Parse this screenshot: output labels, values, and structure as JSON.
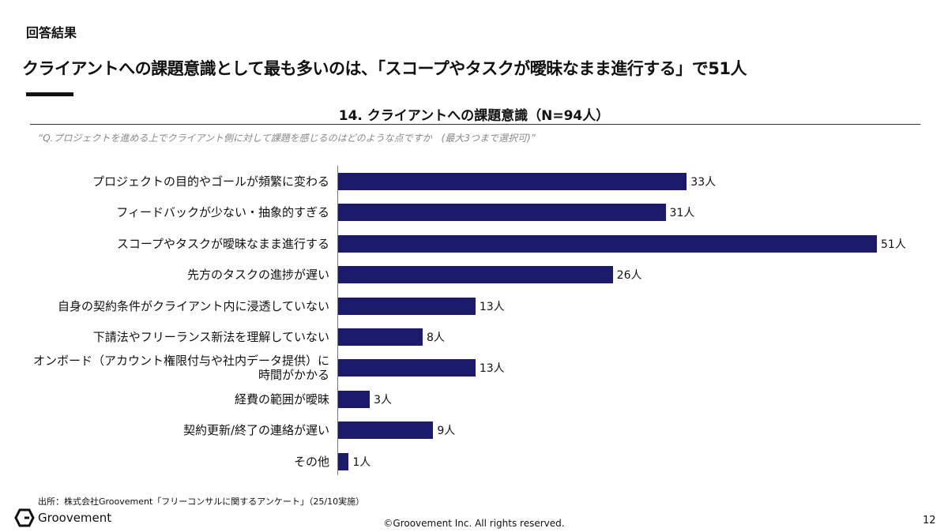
{
  "header": {
    "section": "回答結果",
    "headline": "クライアントへの課題意識として最も多いのは、「スコープやタスクが曖昧なまま進行する」で51人"
  },
  "chart_data": {
    "type": "bar",
    "orientation": "horizontal",
    "title": "14. クライアントへの課題意識（N=94人）",
    "subtitle": "“Q.プロジェクトを進める上でクライアント側に対して課題を感じるのはどのような点ですか　(最大3つまで選択可)”",
    "categories": [
      "プロジェクトの目的やゴールが頻繁に変わる",
      "フィードバックが少ない・抽象的すぎる",
      "スコープやタスクが曖昧なまま進行する",
      "先方のタスクの進捗が遅い",
      "自身の契約条件がクライアント内に浸透していない",
      "下請法やフリーランス新法を理解していない",
      "オンボード（アカウント権限付与や社内データ提供）に\n時間がかかる",
      "経費の範囲が曖昧",
      "契約更新/終了の連絡が遅い",
      "その他"
    ],
    "values": [
      33,
      31,
      51,
      26,
      13,
      8,
      13,
      3,
      9,
      1
    ],
    "value_labels": [
      "33人",
      "31人",
      "51人",
      "26人",
      "13人",
      "8人",
      "13人",
      "3人",
      "9人",
      "1人"
    ],
    "color": "#1b1a6b",
    "xlim": [
      0,
      51
    ]
  },
  "footer": {
    "source": "出所：株式会社Groovement「フリーコンサルに関するアンケート」（25/10実施）",
    "logo": "Groovement",
    "copyright": "©Groovement Inc. All rights reserved.",
    "page": "12"
  }
}
